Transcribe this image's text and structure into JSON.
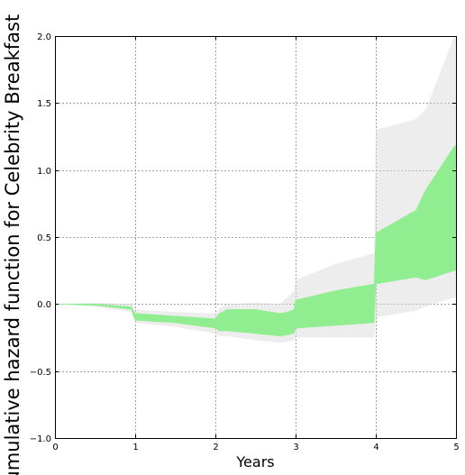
{
  "chart_data": {
    "type": "area",
    "title": "",
    "xlabel": "Years",
    "ylabel": "Cumulative hazard function for Celebrity Breakfast",
    "xlim": [
      0,
      5
    ],
    "ylim": [
      -1.0,
      2.0
    ],
    "grid": true,
    "xticks": [
      "0",
      "1",
      "2",
      "3",
      "4",
      "5"
    ],
    "yticks": [
      "2.0",
      "1.5",
      "1.0",
      "0.5",
      "0.0",
      "−0.5",
      "−1.0"
    ],
    "colors": {
      "band": "#90ee90",
      "samples": "#d8d8d8",
      "grid": "#a0a0a0"
    },
    "series": [
      {
        "values_type": "credible-band",
        "x": [
          0.0,
          0.5,
          0.95,
          1.0,
          1.5,
          2.0,
          2.05,
          2.15,
          2.5,
          2.8,
          2.9,
          2.98,
          3.0,
          3.5,
          3.98,
          4.0,
          4.5,
          4.62,
          4.98,
          5.0
        ],
        "lower": [
          0.0,
          -0.01,
          -0.04,
          -0.12,
          -0.14,
          -0.18,
          -0.2,
          -0.2,
          -0.22,
          -0.24,
          -0.23,
          -0.22,
          -0.18,
          -0.16,
          -0.14,
          0.15,
          0.2,
          0.18,
          0.25,
          0.25
        ],
        "upper": [
          0.0,
          0.0,
          -0.02,
          -0.07,
          -0.09,
          -0.11,
          -0.07,
          -0.04,
          -0.04,
          -0.07,
          -0.06,
          -0.04,
          0.03,
          0.1,
          0.15,
          0.53,
          0.7,
          0.85,
          1.18,
          1.18
        ]
      },
      {
        "values_type": "sample-envelope",
        "x": [
          0.0,
          0.5,
          0.95,
          1.0,
          1.5,
          2.0,
          2.05,
          2.15,
          2.5,
          2.8,
          2.9,
          2.98,
          3.0,
          3.5,
          3.98,
          4.0,
          4.5,
          4.62,
          4.98,
          5.0
        ],
        "lower": [
          0.0,
          -0.02,
          -0.06,
          -0.14,
          -0.17,
          -0.22,
          -0.24,
          -0.24,
          -0.27,
          -0.29,
          -0.28,
          -0.27,
          -0.25,
          -0.25,
          -0.25,
          -0.1,
          -0.05,
          -0.02,
          0.05,
          0.05
        ],
        "upper": [
          0.0,
          0.01,
          0.0,
          -0.04,
          -0.06,
          -0.07,
          -0.03,
          0.0,
          0.01,
          0.0,
          0.05,
          0.1,
          0.18,
          0.3,
          0.38,
          1.3,
          1.38,
          1.45,
          2.0,
          2.0
        ]
      }
    ]
  }
}
